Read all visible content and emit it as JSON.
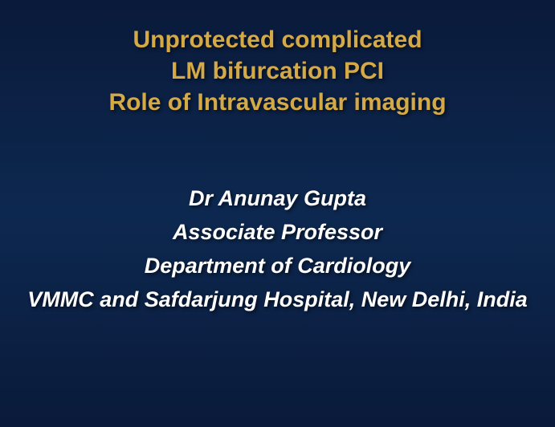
{
  "slide": {
    "title": {
      "line1": "Unprotected complicated",
      "line2": "LM bifurcation PCI",
      "line3": "Role of Intravascular imaging"
    },
    "author": {
      "name": "Dr Anunay Gupta",
      "position": "Associate Professor",
      "department": "Department of Cardiology",
      "affiliation": "VMMC and Safdarjung Hospital, New Delhi, India"
    }
  },
  "styling": {
    "background_gradient_start": "#0a1a3a",
    "background_gradient_mid": "#0d2850",
    "title_color": "#d4a947",
    "author_color": "#ffffff",
    "title_fontsize": 30,
    "author_fontsize": 27
  }
}
